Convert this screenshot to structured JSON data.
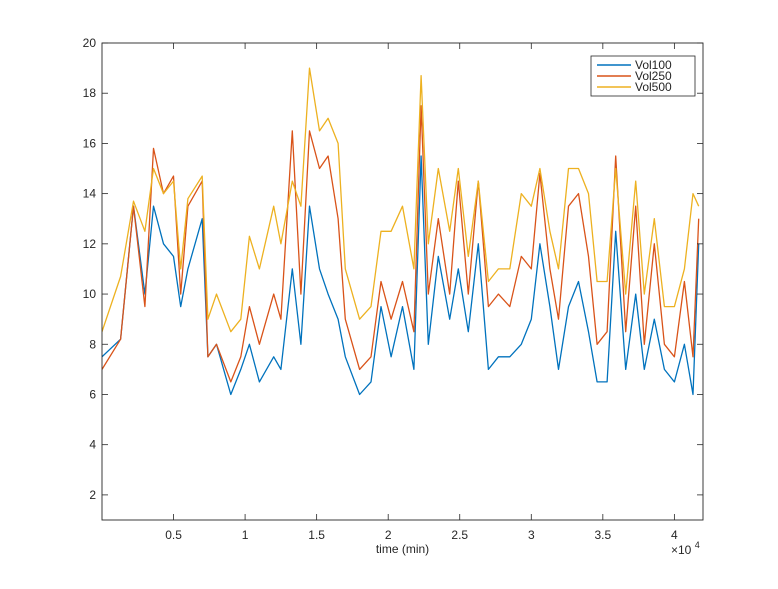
{
  "chart_data": {
    "type": "line",
    "title": "",
    "xlabel": "time (min)",
    "ylabel": "",
    "x_exponent_label": "×10",
    "x_exponent_power": "4",
    "xlim": [
      0,
      42000
    ],
    "ylim": [
      1,
      20
    ],
    "xticks": [
      5000,
      10000,
      15000,
      20000,
      25000,
      30000,
      35000,
      40000
    ],
    "xtick_labels": [
      "0.5",
      "1",
      "1.5",
      "2",
      "2.5",
      "3",
      "3.5",
      "4"
    ],
    "yticks": [
      2,
      4,
      6,
      8,
      10,
      12,
      14,
      16,
      18,
      20
    ],
    "ytick_labels": [
      "2",
      "4",
      "6",
      "8",
      "10",
      "12",
      "14",
      "16",
      "18",
      "20"
    ],
    "grid": false,
    "legend_position": "top-right",
    "series": [
      {
        "name": "Vol100",
        "color": "#0072BD"
      },
      {
        "name": "Vol250",
        "color": "#D95319"
      },
      {
        "name": "Vol500",
        "color": "#EDB120"
      }
    ],
    "x": [
      0,
      1300,
      2200,
      3000,
      3600,
      4300,
      5000,
      5500,
      6000,
      7000,
      7400,
      8000,
      9000,
      9700,
      10300,
      11000,
      12000,
      12500,
      13300,
      13900,
      14500,
      15200,
      15800,
      16500,
      17000,
      18000,
      18800,
      19500,
      20200,
      21000,
      21800,
      22300,
      22800,
      23500,
      24300,
      24900,
      25600,
      26300,
      27000,
      27700,
      28500,
      29300,
      30000,
      30600,
      31300,
      31900,
      32600,
      33300,
      34000,
      34600,
      35300,
      35900,
      36600,
      37300,
      37900,
      38600,
      39300,
      40000,
      40700,
      41300,
      41700
    ],
    "values": [
      [
        7.5,
        8.2,
        13.5,
        10.0,
        13.5,
        12.0,
        11.5,
        9.5,
        11.0,
        13.0,
        7.5,
        8.0,
        6.0,
        7.0,
        8.0,
        6.5,
        7.5,
        7.0,
        11.0,
        8.0,
        13.5,
        11.0,
        10.0,
        9.0,
        7.5,
        6.0,
        6.5,
        9.5,
        7.5,
        9.5,
        7.0,
        15.5,
        8.0,
        11.5,
        9.0,
        11.0,
        8.5,
        12.0,
        7.0,
        7.5,
        7.5,
        8.0,
        9.0,
        12.0,
        9.5,
        7.0,
        9.5,
        10.5,
        8.5,
        6.5,
        6.5,
        12.5,
        7.0,
        10.0,
        7.0,
        9.0,
        7.0,
        6.5,
        8.0,
        6.0,
        12.0
      ],
      [
        7.0,
        8.2,
        13.5,
        9.5,
        15.8,
        14.0,
        14.7,
        10.0,
        13.5,
        14.5,
        7.5,
        8.0,
        6.5,
        7.5,
        9.5,
        8.0,
        10.0,
        9.0,
        16.5,
        10.0,
        16.5,
        15.0,
        15.5,
        13.0,
        9.0,
        7.0,
        7.5,
        10.5,
        9.0,
        10.5,
        8.5,
        17.5,
        10.0,
        13.0,
        10.0,
        14.5,
        10.0,
        14.5,
        9.5,
        10.0,
        9.5,
        11.5,
        11.0,
        14.8,
        11.0,
        9.0,
        13.5,
        14.0,
        11.5,
        8.0,
        8.5,
        15.5,
        8.5,
        13.5,
        8.0,
        12.0,
        8.0,
        7.5,
        10.5,
        7.5,
        13.0
      ],
      [
        8.5,
        10.7,
        13.7,
        12.5,
        15.0,
        14.0,
        14.5,
        11.0,
        13.8,
        14.7,
        9.0,
        10.0,
        8.5,
        9.0,
        12.3,
        11.0,
        13.5,
        12.0,
        14.5,
        13.5,
        19.0,
        16.5,
        17.0,
        16.0,
        11.0,
        9.0,
        9.5,
        12.5,
        12.5,
        13.5,
        11.0,
        18.7,
        12.0,
        15.0,
        12.5,
        15.0,
        11.5,
        14.5,
        10.5,
        11.0,
        11.0,
        14.0,
        13.5,
        15.0,
        12.5,
        11.0,
        15.0,
        15.0,
        14.0,
        10.5,
        10.5,
        15.0,
        10.0,
        14.5,
        10.0,
        13.0,
        9.5,
        9.5,
        11.0,
        14.0,
        13.5
      ]
    ]
  }
}
